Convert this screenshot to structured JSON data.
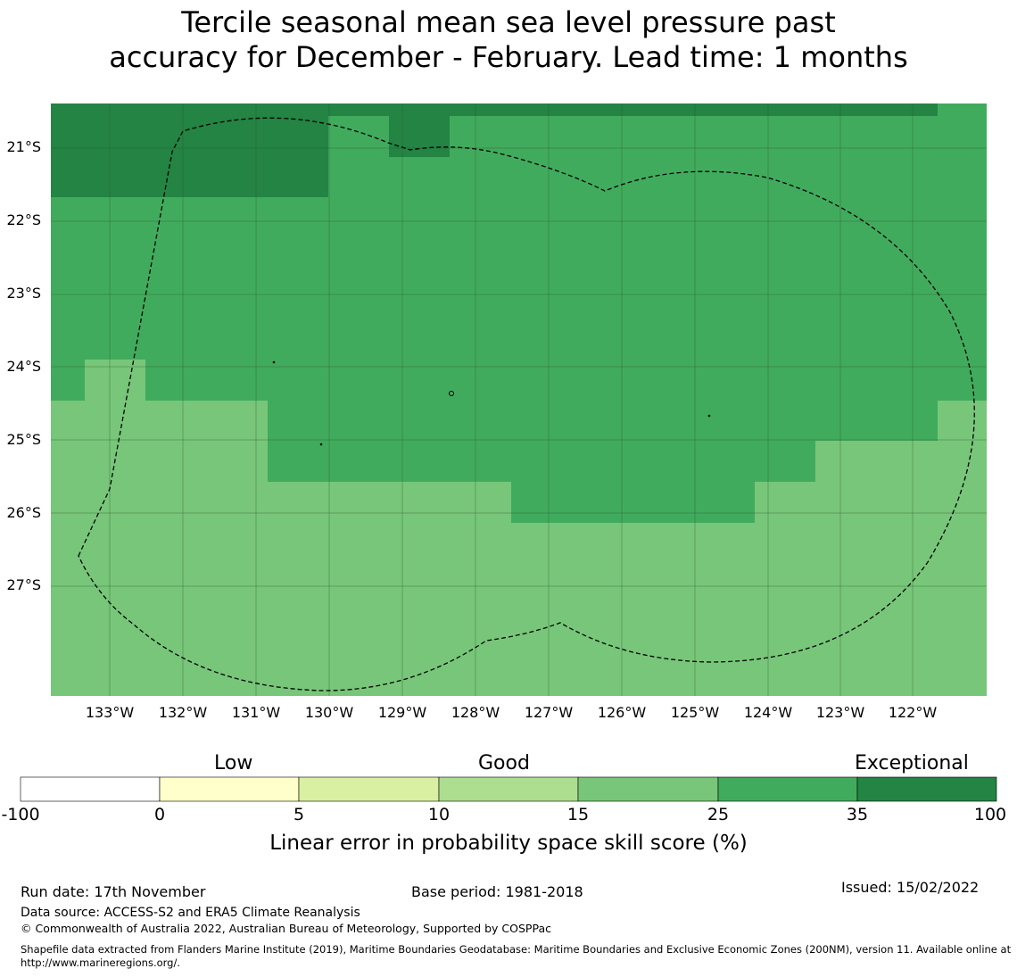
{
  "title": {
    "line1": "Tercile seasonal mean sea level pressure past",
    "line2": "accuracy for December - February. Lead time: 1 months"
  },
  "map": {
    "lat_labels": [
      "21°S",
      "22°S",
      "23°S",
      "24°S",
      "25°S",
      "26°S",
      "27°S"
    ],
    "lon_labels": [
      "133°W",
      "132°W",
      "131°W",
      "130°W",
      "129°W",
      "128°W",
      "127°W",
      "126°W",
      "125°W",
      "124°W",
      "123°W",
      "122°W"
    ],
    "extent": {
      "lon_min": -133.8,
      "lon_max": -121.0,
      "lat_max": -20.6,
      "lat_min": -28.7
    },
    "colors": {
      "skill_15_25": "#77c679",
      "skill_25_35": "#41ab5d",
      "skill_35_100": "#238443",
      "grid": "#3a5f3a"
    },
    "boundary": "Exclusive Economic Zone (dashed)"
  },
  "colorbar": {
    "categories": [
      "Low",
      "Good",
      "Exceptional"
    ],
    "ticks": [
      "-100",
      "0",
      "5",
      "10",
      "15",
      "25",
      "35",
      "100"
    ],
    "colors": [
      "#ffffff",
      "#ffffcc",
      "#d9f0a3",
      "#addd8e",
      "#78c679",
      "#41ab5d",
      "#238443"
    ],
    "label": "Linear error in probability space skill score (%)"
  },
  "footer": {
    "run_date": "Run date: 17th November",
    "base_period": "Base period: 1981-2018",
    "issued": "Issued: 15/02/2022",
    "data_source": "Data source: ACCESS-S2 and ERA5 Climate Reanalysis",
    "copyright": "© Commonwealth of Australia 2022, Australian Bureau of Meteorology, Supported by COSPPac",
    "shapefile": "Shapefile data extracted from Flanders Marine Institute (2019), Maritime Boundaries Geodatabase: Maritime Boundaries and Exclusive Economic Zones (200NM), version 11. Available online at http://www.marineregions.org/."
  }
}
